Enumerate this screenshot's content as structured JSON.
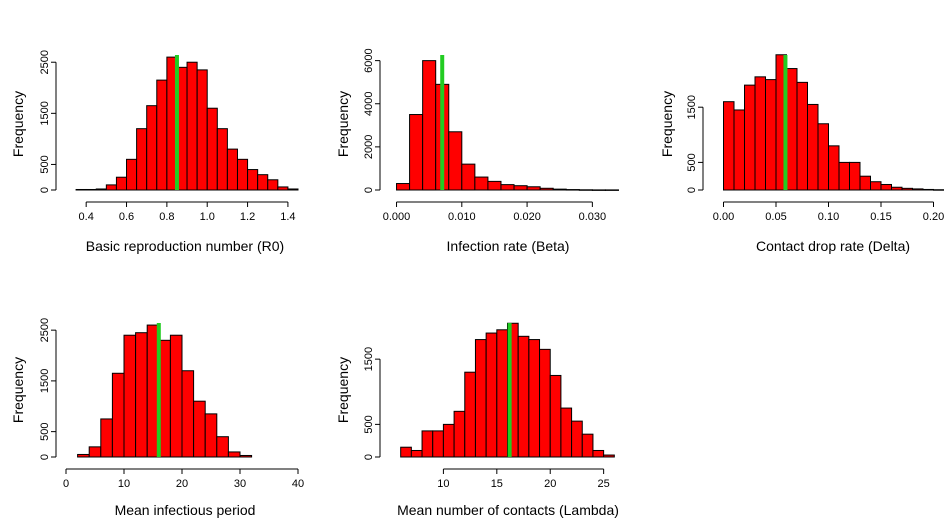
{
  "figure": {
    "style": {
      "bar_fill": "#ff0000",
      "bar_stroke": "#000000",
      "marker_color": "#22cc22"
    }
  },
  "chart_data": [
    {
      "type": "bar",
      "xlabel": "Basic reproduction number (R0)",
      "ylabel": "Frequency",
      "bin_start": 0.35,
      "bin_width": 0.05,
      "frequencies": [
        10,
        10,
        20,
        100,
        250,
        600,
        1200,
        1650,
        2150,
        2600,
        2400,
        2500,
        2350,
        1600,
        1200,
        800,
        600,
        400,
        300,
        200,
        60,
        20
      ],
      "marker": 0.85,
      "xlim": [
        0.3,
        1.45
      ],
      "xticks": [
        0.4,
        0.6,
        0.8,
        1.0,
        1.2,
        1.4
      ],
      "xtick_labels": [
        "0.4",
        "0.6",
        "0.8",
        "1.0",
        "1.2",
        "1.4"
      ],
      "ylim": [
        0,
        2700
      ],
      "yticks": [
        0,
        500,
        1500,
        2500
      ],
      "ytick_labels": [
        "0",
        "500",
        "1500",
        "2500"
      ]
    },
    {
      "type": "bar",
      "xlabel": "Infection rate (Beta)",
      "ylabel": "Frequency",
      "bin_start": 0.0,
      "bin_width": 0.002,
      "frequencies": [
        300,
        3500,
        6000,
        4900,
        2700,
        1200,
        600,
        400,
        250,
        200,
        150,
        80,
        40,
        20,
        10,
        5,
        5
      ],
      "marker": 0.007,
      "xlim": [
        -0.001,
        0.035
      ],
      "xticks": [
        0.0,
        0.01,
        0.02,
        0.03
      ],
      "xtick_labels": [
        "0.000",
        "0.010",
        "0.020",
        "0.030"
      ],
      "ylim": [
        0,
        6400
      ],
      "yticks": [
        0,
        2000,
        4000,
        6000
      ],
      "ytick_labels": [
        "0",
        "2000",
        "4000",
        "6000"
      ]
    },
    {
      "type": "bar",
      "xlabel": "Contact drop rate (Delta)",
      "ylabel": "Frequency",
      "bin_start": 0.0,
      "bin_width": 0.01,
      "frequencies": [
        1600,
        1450,
        1900,
        2050,
        2000,
        2450,
        2200,
        1950,
        1550,
        1200,
        800,
        500,
        500,
        250,
        150,
        100,
        50,
        30,
        20,
        10,
        5
      ],
      "marker": 0.059,
      "xlim": [
        -0.01,
        0.21
      ],
      "xticks": [
        0.0,
        0.05,
        0.1,
        0.15,
        0.2
      ],
      "xtick_labels": [
        "0.00",
        "0.05",
        "0.10",
        "0.15",
        "0.20"
      ],
      "ylim": [
        0,
        2500
      ],
      "yticks": [
        0,
        500,
        1500
      ],
      "ytick_labels": [
        "0",
        "500",
        "1500"
      ]
    },
    {
      "type": "bar",
      "xlabel": "Mean infectious period",
      "ylabel": "Frequency",
      "bin_start": 2,
      "bin_width": 2,
      "frequencies": [
        50,
        200,
        750,
        1650,
        2400,
        2450,
        2600,
        2300,
        2400,
        1700,
        1100,
        850,
        400,
        100,
        30
      ],
      "marker": 16,
      "xlim": [
        0,
        40
      ],
      "xticks": [
        0,
        10,
        20,
        30,
        40
      ],
      "xtick_labels": [
        "0",
        "10",
        "20",
        "30",
        "40"
      ],
      "ylim": [
        0,
        2700
      ],
      "yticks": [
        0,
        500,
        1500,
        2500
      ],
      "ytick_labels": [
        "0",
        "500",
        "1500",
        "2500"
      ]
    },
    {
      "type": "bar",
      "xlabel": "Mean number of contacts (Lambda)",
      "ylabel": "Frequency",
      "bin_start": 6,
      "bin_width": 1,
      "frequencies": [
        150,
        100,
        400,
        400,
        500,
        700,
        1300,
        1800,
        1900,
        1950,
        2050,
        1850,
        1800,
        1650,
        1250,
        750,
        550,
        350,
        100,
        30
      ],
      "marker": 16.2,
      "xlim": [
        5,
        27
      ],
      "xticks": [
        10,
        15,
        20,
        25
      ],
      "xtick_labels": [
        "10",
        "15",
        "20",
        "25"
      ],
      "ylim": [
        0,
        2100
      ],
      "yticks": [
        0,
        500,
        1500
      ],
      "ytick_labels": [
        "0",
        "500",
        "1500"
      ]
    }
  ]
}
